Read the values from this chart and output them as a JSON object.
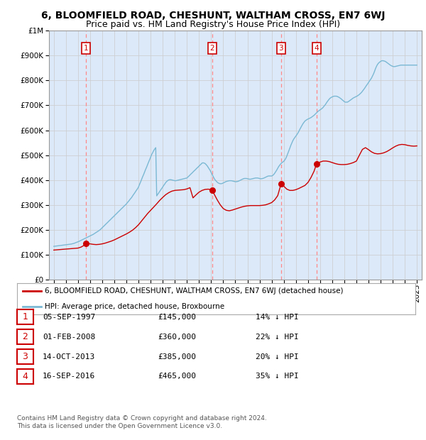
{
  "title": "6, BLOOMFIELD ROAD, CHESHUNT, WALTHAM CROSS, EN7 6WJ",
  "subtitle": "Price paid vs. HM Land Registry's House Price Index (HPI)",
  "footer_line1": "Contains HM Land Registry data © Crown copyright and database right 2024.",
  "footer_line2": "This data is licensed under the Open Government Licence v3.0.",
  "legend_red": "6, BLOOMFIELD ROAD, CHESHUNT, WALTHAM CROSS, EN7 6WJ (detached house)",
  "legend_blue": "HPI: Average price, detached house, Broxbourne",
  "sales": [
    {
      "num": 1,
      "date": "05-SEP-1997",
      "price": 145000,
      "pct": "14%",
      "dir": "↓",
      "year_x": 1997.67
    },
    {
      "num": 2,
      "date": "01-FEB-2008",
      "price": 360000,
      "pct": "22%",
      "dir": "↓",
      "year_x": 2008.08
    },
    {
      "num": 3,
      "date": "14-OCT-2013",
      "price": 385000,
      "pct": "20%",
      "dir": "↓",
      "year_x": 2013.78
    },
    {
      "num": 4,
      "date": "16-SEP-2016",
      "price": 465000,
      "pct": "35%",
      "dir": "↓",
      "year_x": 2016.71
    }
  ],
  "hpi_years": [
    1995.0,
    1995.08,
    1995.17,
    1995.25,
    1995.33,
    1995.42,
    1995.5,
    1995.58,
    1995.67,
    1995.75,
    1995.83,
    1995.92,
    1996.0,
    1996.08,
    1996.17,
    1996.25,
    1996.33,
    1996.42,
    1996.5,
    1996.58,
    1996.67,
    1996.75,
    1996.83,
    1996.92,
    1997.0,
    1997.08,
    1997.17,
    1997.25,
    1997.33,
    1997.42,
    1997.5,
    1997.58,
    1997.67,
    1997.75,
    1997.83,
    1997.92,
    1998.0,
    1998.08,
    1998.17,
    1998.25,
    1998.33,
    1998.42,
    1998.5,
    1998.58,
    1998.67,
    1998.75,
    1998.83,
    1998.92,
    1999.0,
    1999.08,
    1999.17,
    1999.25,
    1999.33,
    1999.42,
    1999.5,
    1999.58,
    1999.67,
    1999.75,
    1999.83,
    1999.92,
    2000.0,
    2000.08,
    2000.17,
    2000.25,
    2000.33,
    2000.42,
    2000.5,
    2000.58,
    2000.67,
    2000.75,
    2000.83,
    2000.92,
    2001.0,
    2001.08,
    2001.17,
    2001.25,
    2001.33,
    2001.42,
    2001.5,
    2001.58,
    2001.67,
    2001.75,
    2001.83,
    2001.92,
    2002.0,
    2002.08,
    2002.17,
    2002.25,
    2002.33,
    2002.42,
    2002.5,
    2002.58,
    2002.67,
    2002.75,
    2002.83,
    2002.92,
    2003.0,
    2003.08,
    2003.17,
    2003.25,
    2003.33,
    2003.42,
    2003.5,
    2003.58,
    2003.67,
    2003.75,
    2003.83,
    2003.92,
    2004.0,
    2004.08,
    2004.17,
    2004.25,
    2004.33,
    2004.42,
    2004.5,
    2004.58,
    2004.67,
    2004.75,
    2004.83,
    2004.92,
    2005.0,
    2005.08,
    2005.17,
    2005.25,
    2005.33,
    2005.42,
    2005.5,
    2005.58,
    2005.67,
    2005.75,
    2005.83,
    2005.92,
    2006.0,
    2006.08,
    2006.17,
    2006.25,
    2006.33,
    2006.42,
    2006.5,
    2006.58,
    2006.67,
    2006.75,
    2006.83,
    2006.92,
    2007.0,
    2007.08,
    2007.17,
    2007.25,
    2007.33,
    2007.42,
    2007.5,
    2007.58,
    2007.67,
    2007.75,
    2007.83,
    2007.92,
    2008.0,
    2008.08,
    2008.17,
    2008.25,
    2008.33,
    2008.42,
    2008.5,
    2008.58,
    2008.67,
    2008.75,
    2008.83,
    2008.92,
    2009.0,
    2009.08,
    2009.17,
    2009.25,
    2009.33,
    2009.42,
    2009.5,
    2009.58,
    2009.67,
    2009.75,
    2009.83,
    2009.92,
    2010.0,
    2010.08,
    2010.17,
    2010.25,
    2010.33,
    2010.42,
    2010.5,
    2010.58,
    2010.67,
    2010.75,
    2010.83,
    2010.92,
    2011.0,
    2011.08,
    2011.17,
    2011.25,
    2011.33,
    2011.42,
    2011.5,
    2011.58,
    2011.67,
    2011.75,
    2011.83,
    2011.92,
    2012.0,
    2012.08,
    2012.17,
    2012.25,
    2012.33,
    2012.42,
    2012.5,
    2012.58,
    2012.67,
    2012.75,
    2012.83,
    2012.92,
    2013.0,
    2013.08,
    2013.17,
    2013.25,
    2013.33,
    2013.42,
    2013.5,
    2013.58,
    2013.67,
    2013.75,
    2013.83,
    2013.92,
    2014.0,
    2014.08,
    2014.17,
    2014.25,
    2014.33,
    2014.42,
    2014.5,
    2014.58,
    2014.67,
    2014.75,
    2014.83,
    2014.92,
    2015.0,
    2015.08,
    2015.17,
    2015.25,
    2015.33,
    2015.42,
    2015.5,
    2015.58,
    2015.67,
    2015.75,
    2015.83,
    2015.92,
    2016.0,
    2016.08,
    2016.17,
    2016.25,
    2016.33,
    2016.42,
    2016.5,
    2016.58,
    2016.67,
    2016.75,
    2016.83,
    2016.92,
    2017.0,
    2017.08,
    2017.17,
    2017.25,
    2017.33,
    2017.42,
    2017.5,
    2017.58,
    2017.67,
    2017.75,
    2017.83,
    2017.92,
    2018.0,
    2018.08,
    2018.17,
    2018.25,
    2018.33,
    2018.42,
    2018.5,
    2018.58,
    2018.67,
    2018.75,
    2018.83,
    2018.92,
    2019.0,
    2019.08,
    2019.17,
    2019.25,
    2019.33,
    2019.42,
    2019.5,
    2019.58,
    2019.67,
    2019.75,
    2019.83,
    2019.92,
    2020.0,
    2020.08,
    2020.17,
    2020.25,
    2020.33,
    2020.42,
    2020.5,
    2020.58,
    2020.67,
    2020.75,
    2020.83,
    2020.92,
    2021.0,
    2021.08,
    2021.17,
    2021.25,
    2021.33,
    2021.42,
    2021.5,
    2021.58,
    2021.67,
    2021.75,
    2021.83,
    2021.92,
    2022.0,
    2022.08,
    2022.17,
    2022.25,
    2022.33,
    2022.42,
    2022.5,
    2022.58,
    2022.67,
    2022.75,
    2022.83,
    2022.92,
    2023.0,
    2023.08,
    2023.17,
    2023.25,
    2023.33,
    2023.42,
    2023.5,
    2023.58,
    2023.67,
    2023.75,
    2023.83,
    2023.92,
    2024.0,
    2024.08,
    2024.17,
    2024.25,
    2024.33,
    2024.42,
    2024.5,
    2024.58,
    2024.67,
    2024.75,
    2024.83,
    2024.92,
    2025.0
  ],
  "hpi_values": [
    133000,
    133500,
    134000,
    134500,
    135000,
    135500,
    136000,
    136500,
    137000,
    137500,
    138000,
    138500,
    139000,
    139500,
    140000,
    140500,
    141000,
    142000,
    143000,
    144000,
    145000,
    146500,
    148000,
    149500,
    151000,
    153000,
    155000,
    157000,
    159000,
    161000,
    163000,
    165000,
    167000,
    169000,
    171000,
    173000,
    175000,
    177000,
    179000,
    181000,
    183500,
    186000,
    188500,
    191000,
    194000,
    197000,
    200000,
    204000,
    208000,
    212000,
    216000,
    220000,
    224000,
    228000,
    232000,
    236000,
    240000,
    244000,
    248000,
    252000,
    256000,
    260000,
    264000,
    268000,
    272000,
    276000,
    280000,
    284000,
    288000,
    292000,
    296000,
    300000,
    304000,
    309000,
    314000,
    319000,
    324000,
    329000,
    335000,
    341000,
    347000,
    353000,
    359000,
    365000,
    372000,
    382000,
    392000,
    402000,
    412000,
    422000,
    432000,
    442000,
    452000,
    462000,
    472000,
    482000,
    492000,
    502000,
    510000,
    518000,
    524000,
    530000,
    336000,
    342000,
    348000,
    354000,
    360000,
    366000,
    372000,
    378000,
    384000,
    390000,
    394000,
    398000,
    400000,
    401000,
    401000,
    400000,
    399000,
    398000,
    397000,
    397000,
    398000,
    399000,
    400000,
    401000,
    402000,
    403000,
    404000,
    405000,
    406000,
    407000,
    408000,
    412000,
    416000,
    420000,
    424000,
    428000,
    432000,
    436000,
    440000,
    444000,
    448000,
    452000,
    456000,
    460000,
    464000,
    468000,
    469000,
    468000,
    466000,
    462000,
    457000,
    451000,
    445000,
    438000,
    430000,
    422000,
    414000,
    406000,
    400000,
    395000,
    391000,
    388000,
    386000,
    385000,
    385000,
    386000,
    388000,
    390000,
    392000,
    394000,
    395000,
    396000,
    397000,
    397000,
    397000,
    396000,
    395000,
    394000,
    393000,
    393000,
    394000,
    395000,
    397000,
    399000,
    401000,
    403000,
    405000,
    406000,
    406000,
    406000,
    405000,
    404000,
    403000,
    403000,
    404000,
    405000,
    406000,
    407000,
    408000,
    408000,
    408000,
    407000,
    406000,
    405000,
    405000,
    406000,
    407000,
    409000,
    411000,
    413000,
    415000,
    416000,
    416000,
    416000,
    416000,
    418000,
    422000,
    427000,
    433000,
    440000,
    447000,
    454000,
    460000,
    465000,
    469000,
    472000,
    475000,
    480000,
    487000,
    496000,
    506000,
    517000,
    528000,
    539000,
    549000,
    558000,
    565000,
    571000,
    576000,
    582000,
    589000,
    596000,
    604000,
    612000,
    619000,
    626000,
    632000,
    637000,
    640000,
    643000,
    645000,
    647000,
    649000,
    651000,
    654000,
    657000,
    660000,
    664000,
    668000,
    672000,
    676000,
    679000,
    682000,
    685000,
    688000,
    692000,
    697000,
    702000,
    708000,
    714000,
    720000,
    725000,
    729000,
    732000,
    734000,
    736000,
    737000,
    737000,
    737000,
    736000,
    734000,
    732000,
    729000,
    726000,
    722000,
    719000,
    715000,
    713000,
    713000,
    713000,
    715000,
    718000,
    721000,
    724000,
    727000,
    730000,
    732000,
    734000,
    736000,
    738000,
    741000,
    744000,
    748000,
    752000,
    757000,
    762000,
    768000,
    774000,
    780000,
    786000,
    792000,
    798000,
    804000,
    810000,
    818000,
    827000,
    837000,
    848000,
    858000,
    865000,
    870000,
    874000,
    877000,
    879000,
    880000,
    879000,
    878000,
    876000,
    873000,
    870000,
    867000,
    864000,
    861000,
    859000,
    857000,
    856000,
    856000,
    857000,
    858000,
    859000,
    860000,
    861000,
    862000,
    862000,
    862000,
    862000,
    862000,
    862000,
    862000,
    862000,
    862000,
    862000,
    862000,
    862000,
    862000,
    862000,
    862000,
    862000,
    862000,
    862000,
    862000,
    862000,
    862000,
    862000,
    862000,
    862000,
    862000,
    862000,
    862000,
    862000,
    862000
  ],
  "red_line_years": [
    1995.0,
    1995.25,
    1995.5,
    1995.75,
    1996.0,
    1996.25,
    1996.5,
    1996.75,
    1997.0,
    1997.25,
    1997.5,
    1997.67,
    1998.0,
    1998.25,
    1998.5,
    1998.75,
    1999.0,
    1999.25,
    1999.5,
    1999.75,
    2000.0,
    2000.25,
    2000.5,
    2000.75,
    2001.0,
    2001.25,
    2001.5,
    2001.75,
    2002.0,
    2002.25,
    2002.5,
    2002.75,
    2003.0,
    2003.25,
    2003.5,
    2003.75,
    2004.0,
    2004.25,
    2004.5,
    2004.75,
    2005.0,
    2005.25,
    2005.5,
    2005.75,
    2006.0,
    2006.25,
    2006.5,
    2006.75,
    2007.0,
    2007.25,
    2007.5,
    2007.75,
    2008.08,
    2008.25,
    2008.5,
    2008.75,
    2009.0,
    2009.25,
    2009.5,
    2009.75,
    2010.0,
    2010.25,
    2010.5,
    2010.75,
    2011.0,
    2011.25,
    2011.5,
    2011.75,
    2012.0,
    2012.25,
    2012.5,
    2012.75,
    2013.0,
    2013.25,
    2013.5,
    2013.78,
    2014.0,
    2014.25,
    2014.5,
    2014.75,
    2015.0,
    2015.25,
    2015.5,
    2015.75,
    2016.0,
    2016.25,
    2016.5,
    2016.71,
    2017.0,
    2017.25,
    2017.5,
    2017.75,
    2018.0,
    2018.25,
    2018.5,
    2018.75,
    2019.0,
    2019.25,
    2019.5,
    2019.75,
    2020.0,
    2020.25,
    2020.5,
    2020.75,
    2021.0,
    2021.25,
    2021.5,
    2021.75,
    2022.0,
    2022.25,
    2022.5,
    2022.75,
    2023.0,
    2023.25,
    2023.5,
    2023.75,
    2024.0,
    2024.25,
    2024.5,
    2024.75,
    2025.0
  ],
  "red_line_values": [
    118000,
    119000,
    120000,
    121000,
    122000,
    123000,
    124000,
    125000,
    126000,
    130000,
    137000,
    145000,
    143000,
    141000,
    140000,
    141000,
    143000,
    146000,
    150000,
    154000,
    159000,
    165000,
    171000,
    177000,
    183000,
    190000,
    198000,
    208000,
    220000,
    235000,
    250000,
    265000,
    278000,
    291000,
    304000,
    318000,
    330000,
    341000,
    349000,
    355000,
    358000,
    359000,
    360000,
    361000,
    364000,
    369000,
    328000,
    340000,
    351000,
    358000,
    362000,
    363000,
    360000,
    343000,
    320000,
    300000,
    285000,
    278000,
    276000,
    279000,
    283000,
    287000,
    291000,
    294000,
    296000,
    297000,
    297000,
    297000,
    297000,
    298000,
    300000,
    304000,
    309000,
    320000,
    337000,
    385000,
    375000,
    363000,
    358000,
    358000,
    361000,
    366000,
    372000,
    378000,
    390000,
    410000,
    435000,
    465000,
    472000,
    476000,
    476000,
    474000,
    470000,
    466000,
    463000,
    462000,
    462000,
    463000,
    466000,
    470000,
    476000,
    500000,
    523000,
    530000,
    522000,
    513000,
    507000,
    505000,
    506000,
    509000,
    514000,
    521000,
    529000,
    536000,
    541000,
    543000,
    542000,
    539000,
    537000,
    536000,
    537000
  ],
  "ylim": [
    0,
    1000000
  ],
  "xlim": [
    1994.6,
    2025.4
  ],
  "bg_color": "#dce9f8",
  "plot_bg": "#ffffff",
  "grid_color": "#cccccc",
  "red_color": "#cc0000",
  "blue_color": "#7ab8d4",
  "vline_color": "#ff8888",
  "box_color": "#cc0000",
  "title_fontsize": 10,
  "subtitle_fontsize": 9,
  "axis_fontsize": 7.5,
  "footer_fontsize": 6.5
}
